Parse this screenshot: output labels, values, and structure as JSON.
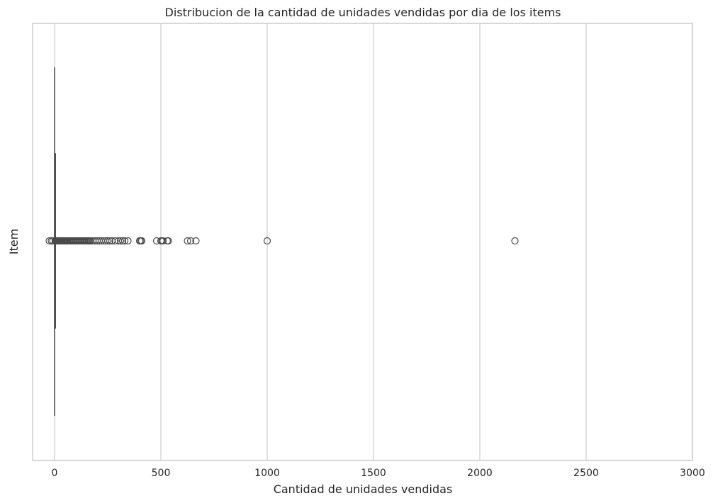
{
  "chart_data": {
    "type": "box",
    "orientation": "horizontal",
    "title": "Distribucion de la cantidad de unidades vendidas por dia de los items",
    "xlabel": "Cantidad de unidades vendidas",
    "ylabel": "Item",
    "xlim": [
      -100,
      3000
    ],
    "xticks": [
      0,
      500,
      1000,
      1500,
      2000,
      2500,
      3000
    ],
    "grid": true,
    "colors": {
      "marks": "#4a4a4a",
      "grid": "#cccccc"
    },
    "stats": {
      "min": 0,
      "q1": 0,
      "median": 0,
      "q3": 1,
      "max": 2
    },
    "outliers": [
      -25,
      -15,
      -8,
      3,
      5,
      8,
      10,
      12,
      15,
      18,
      20,
      22,
      25,
      28,
      30,
      33,
      36,
      40,
      44,
      48,
      52,
      56,
      60,
      65,
      70,
      75,
      80,
      85,
      90,
      95,
      100,
      105,
      110,
      115,
      120,
      125,
      130,
      135,
      140,
      145,
      150,
      155,
      160,
      165,
      170,
      180,
      190,
      200,
      210,
      220,
      230,
      240,
      250,
      260,
      270,
      285,
      300,
      310,
      320,
      330,
      345,
      400,
      405,
      410,
      480,
      500,
      505,
      510,
      530,
      535,
      625,
      640,
      665,
      1000,
      2165
    ]
  }
}
